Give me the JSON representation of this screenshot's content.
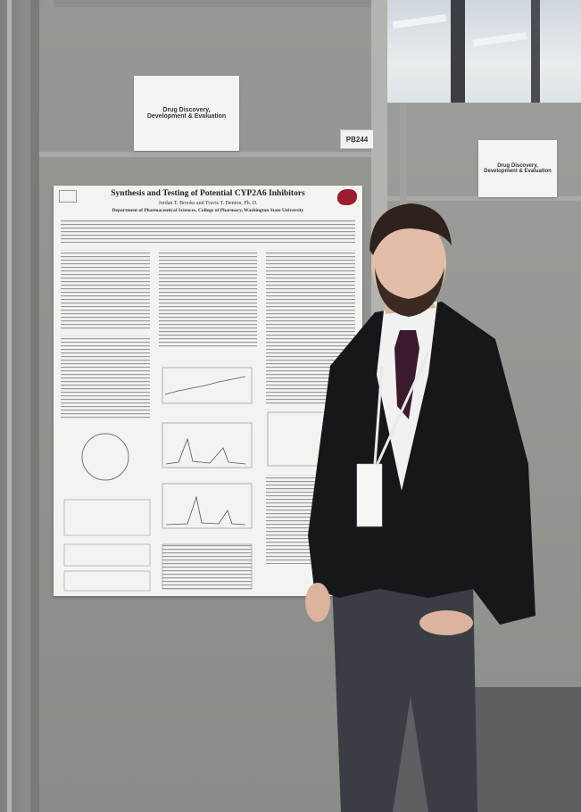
{
  "scene": {
    "main_sign": {
      "line1": "Drug Discovery,",
      "line2": "Development & Evaluation"
    },
    "side_sign": {
      "line1": "Drug Discovery,",
      "line2": "Development & Evaluation"
    },
    "poster_code": "PB244",
    "poster": {
      "title": "Synthesis and Testing of Potential CYP2A6 Inhibitors",
      "authors": "Jordan T. Brooks and Travis T. Denton, Ph. D.",
      "department": "Department of Pharmaceutical Sciences, College of Pharmacy, Washington State University"
    },
    "colors": {
      "panel_gray": "#8e8f8a",
      "suit": "#15171b",
      "tie": "#3a1a2c",
      "university_crimson": "#9b1c2c"
    }
  }
}
